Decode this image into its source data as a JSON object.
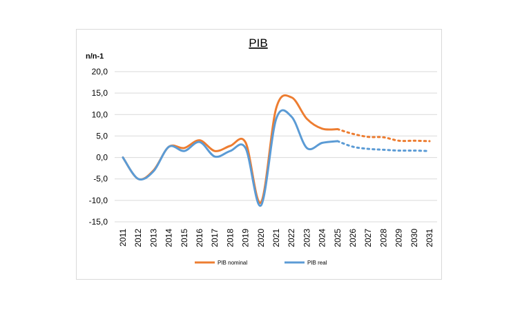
{
  "chart_data": {
    "type": "line",
    "title": "PIB",
    "ylabel": "n/n-1",
    "xlabel": "",
    "ylim": [
      -15,
      20
    ],
    "yticks": [
      "20,0",
      "15,0",
      "10,0",
      "5,0",
      "0,0",
      "-5,0",
      "-10,0",
      "-15,0"
    ],
    "ytick_values": [
      20,
      15,
      10,
      5,
      0,
      -5,
      -10,
      -15
    ],
    "x": [
      "2011",
      "2012",
      "2013",
      "2014",
      "2015",
      "2016",
      "2017",
      "2018",
      "2019",
      "2020",
      "2021",
      "2022",
      "2023",
      "2024",
      "2025",
      "2026",
      "2027",
      "2028",
      "2029",
      "2030",
      "2031"
    ],
    "grid": true,
    "legend_position": "bottom",
    "projection_start": "2025",
    "series": [
      {
        "name": "PIB nominal",
        "color": "#ED7D31",
        "values": [
          0.0,
          -5.0,
          -3.0,
          2.5,
          2.2,
          4.0,
          1.5,
          2.7,
          3.5,
          -10.5,
          11.5,
          14.0,
          9.0,
          6.7,
          6.6,
          5.5,
          4.8,
          4.7,
          3.9,
          3.9,
          3.8
        ]
      },
      {
        "name": "PIB real",
        "color": "#5B9BD5",
        "values": [
          0.0,
          -5.0,
          -3.2,
          2.5,
          1.5,
          3.6,
          0.2,
          1.5,
          2.2,
          -11.2,
          9.0,
          9.5,
          2.2,
          3.4,
          3.8,
          2.5,
          2.0,
          1.8,
          1.6,
          1.6,
          1.5
        ]
      }
    ]
  }
}
